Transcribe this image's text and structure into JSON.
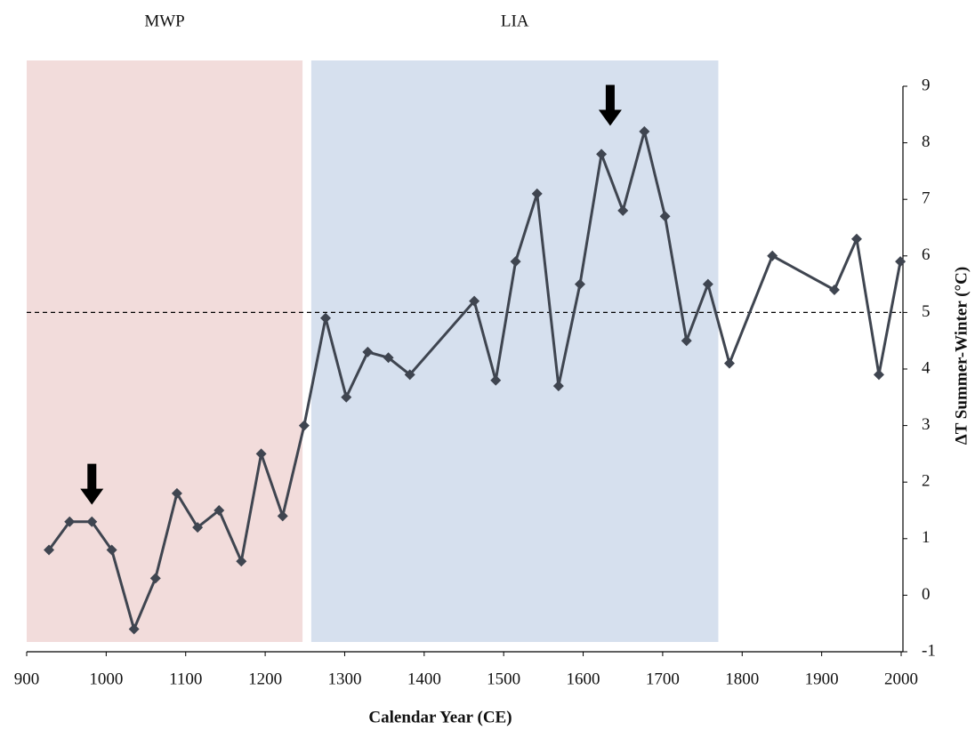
{
  "chart_data": {
    "type": "line",
    "x_label": "Calendar Year (CE)",
    "y_label": "ΔT Summer-Winter (°C)",
    "x": [
      928,
      954,
      982,
      1007,
      1035,
      1062,
      1089,
      1115,
      1142,
      1170,
      1195,
      1222,
      1249,
      1276,
      1302,
      1329,
      1355,
      1382,
      1463,
      1490,
      1515,
      1542,
      1569,
      1596,
      1623,
      1650,
      1677,
      1703,
      1730,
      1757,
      1784,
      1838,
      1916,
      1944,
      1972,
      1999
    ],
    "series": [
      {
        "color": "#3f4550",
        "values": [
          0.8,
          1.3,
          1.3,
          0.8,
          -0.6,
          0.3,
          1.8,
          1.2,
          1.5,
          0.6,
          2.5,
          1.4,
          3.0,
          4.9,
          3.5,
          4.3,
          4.2,
          3.9,
          5.2,
          3.8,
          5.9,
          7.1,
          3.7,
          5.5,
          7.8,
          6.8,
          8.2,
          6.7,
          4.5,
          5.5,
          4.1,
          6.0,
          5.4,
          6.3,
          3.9,
          5.9
        ]
      }
    ],
    "xlim": [
      900,
      2000
    ],
    "ylim": [
      -1,
      9
    ],
    "xticks": [
      900,
      1000,
      1100,
      1200,
      1300,
      1400,
      1500,
      1600,
      1700,
      1800,
      1900,
      2000
    ],
    "yticks": [
      -1,
      0,
      1,
      2,
      3,
      4,
      5,
      6,
      7,
      8,
      9
    ],
    "reference_line": 5,
    "shaded_regions": [
      {
        "label": "MWP",
        "start": 900,
        "end": 1247,
        "color": "#f2dcdb"
      },
      {
        "label": "LIA",
        "start": 1258,
        "end": 1770,
        "color": "#d6e0ee"
      }
    ],
    "arrows": [
      {
        "x": 982,
        "y": 1.6
      },
      {
        "x": 1634,
        "y": 8.3
      }
    ]
  }
}
